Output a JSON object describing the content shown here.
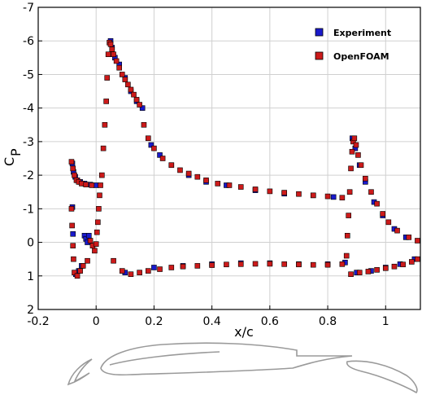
{
  "chart_data": {
    "type": "scatter",
    "xlabel": "x/c",
    "ylabel_main": "C",
    "ylabel_sub": "P",
    "xlim": [
      -0.2,
      1.12
    ],
    "ylim": [
      2,
      -7
    ],
    "y_inverted": true,
    "grid": true,
    "legend_position": "top-right",
    "xticks": [
      -0.2,
      0,
      0.2,
      0.4,
      0.6,
      0.8,
      1
    ],
    "xtick_labels": [
      "-0.2",
      "0",
      "0.2",
      "0.4",
      "0.6",
      "0.8",
      "1"
    ],
    "yticks": [
      -7,
      -6,
      -5,
      -4,
      -3,
      -2,
      -1,
      0,
      1,
      2
    ],
    "ytick_labels": [
      "-7",
      "-6",
      "-5",
      "-4",
      "-3",
      "-2",
      "-1",
      "0",
      "1",
      "2"
    ],
    "series": [
      {
        "name": "Experiment",
        "color": "#1a1acc",
        "points": [
          [
            -0.082,
            -2.35
          ],
          [
            -0.078,
            -2.1
          ],
          [
            -0.072,
            -1.95
          ],
          [
            -0.065,
            -1.85
          ],
          [
            -0.055,
            -1.8
          ],
          [
            -0.04,
            -1.75
          ],
          [
            -0.02,
            -1.72
          ],
          [
            0.0,
            -1.7
          ],
          [
            -0.082,
            -1.05
          ],
          [
            -0.08,
            -0.25
          ],
          [
            -0.07,
            0.95
          ],
          [
            -0.06,
            0.85
          ],
          [
            -0.05,
            0.7
          ],
          [
            -0.04,
            -0.2
          ],
          [
            -0.035,
            -0.1
          ],
          [
            -0.03,
            0.0
          ],
          [
            -0.025,
            -0.2
          ],
          [
            0.05,
            -6.0
          ],
          [
            0.055,
            -5.8
          ],
          [
            0.065,
            -5.5
          ],
          [
            0.08,
            -5.3
          ],
          [
            0.1,
            -4.9
          ],
          [
            0.12,
            -4.5
          ],
          [
            0.14,
            -4.2
          ],
          [
            0.16,
            -4.0
          ],
          [
            0.19,
            -2.9
          ],
          [
            0.22,
            -2.6
          ],
          [
            0.26,
            -2.3
          ],
          [
            0.32,
            -2.0
          ],
          [
            0.38,
            -1.8
          ],
          [
            0.45,
            -1.7
          ],
          [
            0.55,
            -1.55
          ],
          [
            0.65,
            -1.45
          ],
          [
            0.75,
            -1.4
          ],
          [
            0.82,
            -1.35
          ],
          [
            0.885,
            -3.1
          ],
          [
            0.895,
            -2.8
          ],
          [
            0.91,
            -2.3
          ],
          [
            0.93,
            -1.8
          ],
          [
            0.96,
            -1.2
          ],
          [
            0.99,
            -0.8
          ],
          [
            1.03,
            -0.4
          ],
          [
            1.07,
            -0.15
          ],
          [
            0.1,
            0.9
          ],
          [
            0.2,
            0.75
          ],
          [
            0.3,
            0.7
          ],
          [
            0.4,
            0.65
          ],
          [
            0.5,
            0.62
          ],
          [
            0.6,
            0.62
          ],
          [
            0.7,
            0.65
          ],
          [
            0.8,
            0.65
          ],
          [
            0.86,
            0.6
          ],
          [
            0.9,
            0.9
          ],
          [
            0.95,
            0.85
          ],
          [
            1.0,
            0.75
          ],
          [
            1.05,
            0.65
          ],
          [
            1.1,
            0.5
          ]
        ]
      },
      {
        "name": "OpenFOAM",
        "color": "#cc1a1a",
        "points": [
          [
            -0.085,
            -2.4
          ],
          [
            -0.08,
            -2.2
          ],
          [
            -0.075,
            -2.0
          ],
          [
            -0.068,
            -1.85
          ],
          [
            -0.06,
            -1.8
          ],
          [
            -0.05,
            -1.75
          ],
          [
            -0.035,
            -1.72
          ],
          [
            -0.015,
            -1.7
          ],
          [
            -0.085,
            -1.0
          ],
          [
            -0.083,
            -0.5
          ],
          [
            -0.08,
            0.1
          ],
          [
            -0.078,
            0.5
          ],
          [
            -0.075,
            0.9
          ],
          [
            -0.065,
            1.0
          ],
          [
            -0.055,
            0.85
          ],
          [
            -0.045,
            0.7
          ],
          [
            -0.03,
            0.55
          ],
          [
            -0.02,
            -0.05
          ],
          [
            -0.012,
            0.1
          ],
          [
            -0.005,
            0.25
          ],
          [
            0.0,
            0.05
          ],
          [
            0.003,
            -0.3
          ],
          [
            0.006,
            -0.6
          ],
          [
            0.009,
            -1.0
          ],
          [
            0.012,
            -1.4
          ],
          [
            0.015,
            -1.7
          ],
          [
            0.02,
            -2.0
          ],
          [
            0.025,
            -2.8
          ],
          [
            0.03,
            -3.5
          ],
          [
            0.035,
            -4.2
          ],
          [
            0.038,
            -4.9
          ],
          [
            0.042,
            -5.6
          ],
          [
            0.046,
            -5.95
          ],
          [
            0.05,
            -5.9
          ],
          [
            0.055,
            -5.75
          ],
          [
            0.06,
            -5.6
          ],
          [
            0.07,
            -5.4
          ],
          [
            0.08,
            -5.2
          ],
          [
            0.09,
            -5.0
          ],
          [
            0.1,
            -4.85
          ],
          [
            0.11,
            -4.7
          ],
          [
            0.12,
            -4.55
          ],
          [
            0.13,
            -4.4
          ],
          [
            0.14,
            -4.25
          ],
          [
            0.15,
            -4.1
          ],
          [
            0.165,
            -3.5
          ],
          [
            0.18,
            -3.1
          ],
          [
            0.2,
            -2.8
          ],
          [
            0.23,
            -2.5
          ],
          [
            0.26,
            -2.3
          ],
          [
            0.29,
            -2.15
          ],
          [
            0.32,
            -2.05
          ],
          [
            0.35,
            -1.95
          ],
          [
            0.38,
            -1.85
          ],
          [
            0.42,
            -1.75
          ],
          [
            0.46,
            -1.7
          ],
          [
            0.5,
            -1.65
          ],
          [
            0.55,
            -1.58
          ],
          [
            0.6,
            -1.52
          ],
          [
            0.65,
            -1.48
          ],
          [
            0.7,
            -1.44
          ],
          [
            0.75,
            -1.4
          ],
          [
            0.8,
            -1.37
          ],
          [
            0.85,
            -1.33
          ],
          [
            0.865,
            0.4
          ],
          [
            0.868,
            -0.2
          ],
          [
            0.872,
            -0.8
          ],
          [
            0.876,
            -1.5
          ],
          [
            0.88,
            -2.2
          ],
          [
            0.884,
            -2.7
          ],
          [
            0.888,
            -3.0
          ],
          [
            0.892,
            -3.1
          ],
          [
            0.898,
            -2.9
          ],
          [
            0.905,
            -2.6
          ],
          [
            0.915,
            -2.3
          ],
          [
            0.93,
            -1.9
          ],
          [
            0.95,
            -1.5
          ],
          [
            0.97,
            -1.15
          ],
          [
            0.99,
            -0.85
          ],
          [
            1.01,
            -0.6
          ],
          [
            1.04,
            -0.35
          ],
          [
            1.08,
            -0.15
          ],
          [
            1.11,
            -0.05
          ],
          [
            0.06,
            0.55
          ],
          [
            0.09,
            0.85
          ],
          [
            0.12,
            0.95
          ],
          [
            0.15,
            0.9
          ],
          [
            0.18,
            0.85
          ],
          [
            0.22,
            0.8
          ],
          [
            0.26,
            0.75
          ],
          [
            0.3,
            0.72
          ],
          [
            0.35,
            0.7
          ],
          [
            0.4,
            0.68
          ],
          [
            0.45,
            0.66
          ],
          [
            0.5,
            0.65
          ],
          [
            0.55,
            0.64
          ],
          [
            0.6,
            0.64
          ],
          [
            0.65,
            0.65
          ],
          [
            0.7,
            0.66
          ],
          [
            0.75,
            0.67
          ],
          [
            0.8,
            0.67
          ],
          [
            0.85,
            0.65
          ],
          [
            0.88,
            0.95
          ],
          [
            0.91,
            0.9
          ],
          [
            0.94,
            0.87
          ],
          [
            0.97,
            0.82
          ],
          [
            1.0,
            0.77
          ],
          [
            1.03,
            0.72
          ],
          [
            1.06,
            0.66
          ],
          [
            1.09,
            0.58
          ],
          [
            1.11,
            0.5
          ]
        ]
      }
    ],
    "series_labels": {
      "experiment": "Experiment",
      "openfoam": "OpenFOAM"
    }
  }
}
